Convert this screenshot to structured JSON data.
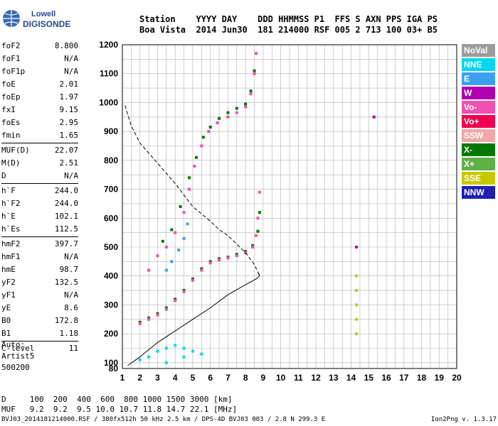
{
  "logo": {
    "line1": "Lowell",
    "line2": "DIGISONDE"
  },
  "header": {
    "line1": "Station    YYYY DAY    DDD HHMMSS P1  FFS S AXN PPS IGA PS",
    "line2": "Boa Vista  2014 Jun30  181 214000 RSF 005 2 713 100 03+ B5"
  },
  "params": [
    {
      "label": "foF2",
      "value": "8.800"
    },
    {
      "label": "foF1",
      "value": "N/A"
    },
    {
      "label": "foF1p",
      "value": "N/A"
    },
    {
      "label": "foE",
      "value": "2.01"
    },
    {
      "label": "foEp",
      "value": "1.97"
    },
    {
      "label": "fxI",
      "value": "9.15"
    },
    {
      "label": "foEs",
      "value": "2.95"
    },
    {
      "label": "fmin",
      "value": "1.65"
    },
    {
      "label": "MUF(D)",
      "value": "22.07"
    },
    {
      "label": "M(D)",
      "value": "2.51"
    },
    {
      "label": "D",
      "value": "N/A"
    },
    {
      "label": "h`F",
      "value": "244.0"
    },
    {
      "label": "h`F2",
      "value": "244.0"
    },
    {
      "label": "h`E",
      "value": "102.1"
    },
    {
      "label": "h`Es",
      "value": "112.5"
    },
    {
      "label": "hmF2",
      "value": "397.7"
    },
    {
      "label": "hmF1",
      "value": "N/A"
    },
    {
      "label": "hmE",
      "value": "98.7"
    },
    {
      "label": "yF2",
      "value": "132.5"
    },
    {
      "label": "yF1",
      "value": "N/A"
    },
    {
      "label": "yE",
      "value": "8.6"
    },
    {
      "label": "B0",
      "value": "172.8"
    },
    {
      "label": "B1",
      "value": "1.18"
    },
    {
      "label": "C-level",
      "value": "11"
    }
  ],
  "status": {
    "line1": "Auto:",
    "line2": "Artist5",
    "line3": "500200"
  },
  "legend": [
    {
      "label": "NoVal",
      "color": "#9c9c9c"
    },
    {
      "label": "NNE",
      "color": "#00d8f0"
    },
    {
      "label": "E",
      "color": "#3aa0f0"
    },
    {
      "label": "W",
      "color": "#b000b0"
    },
    {
      "label": "Vo-",
      "color": "#f050b0"
    },
    {
      "label": "Vo+",
      "color": "#f00050"
    },
    {
      "label": "SSW",
      "color": "#f0a8a8"
    },
    {
      "label": "X-",
      "color": "#007800"
    },
    {
      "label": "X+",
      "color": "#60b048"
    },
    {
      "label": "SSE",
      "color": "#c8c800"
    },
    {
      "label": "NNW",
      "color": "#2020b0"
    }
  ],
  "bottom": {
    "line1": "D     100  200  400  600  800 1000 1500 3000 [km]",
    "line2": "MUF   9.2  9.2  9.5 10.0 10.7 11.8 14.7 22.1 [MHz]"
  },
  "footer": {
    "left": "BVJ03_2014181214000.RSF / 380fx512h 50 kHz 2.5 km / DPS-4D BVJ03 003 / 2.8 N 299.3 E",
    "right": "Ion2Png v. 1.3.17"
  },
  "chart_data": {
    "type": "scatter",
    "xlim": [
      1,
      20
    ],
    "ylim": [
      80,
      1200
    ],
    "x_ticks": [
      1,
      2,
      3,
      4,
      5,
      6,
      7,
      8,
      9,
      10,
      11,
      12,
      13,
      14,
      15,
      16,
      17,
      18,
      19,
      20
    ],
    "y_ticks": [
      80,
      100,
      200,
      300,
      400,
      500,
      600,
      700,
      800,
      900,
      1000,
      1100,
      1200
    ],
    "grid": true,
    "series": [
      {
        "name": "X-",
        "color": "#007800",
        "points": [
          [
            2.0,
            240
          ],
          [
            2.5,
            255
          ],
          [
            3.0,
            270
          ],
          [
            3.5,
            290
          ],
          [
            4.0,
            320
          ],
          [
            4.5,
            350
          ],
          [
            5.0,
            390
          ],
          [
            5.5,
            425
          ],
          [
            6.0,
            450
          ],
          [
            6.5,
            460
          ],
          [
            7.0,
            465
          ],
          [
            7.5,
            475
          ],
          [
            8.0,
            485
          ],
          [
            8.4,
            505
          ],
          [
            8.7,
            555
          ],
          [
            8.8,
            620
          ],
          [
            3.3,
            520
          ],
          [
            3.8,
            560
          ],
          [
            4.3,
            640
          ],
          [
            4.8,
            740
          ],
          [
            5.2,
            810
          ],
          [
            5.6,
            880
          ],
          [
            6.0,
            915
          ],
          [
            6.5,
            945
          ],
          [
            7.0,
            965
          ],
          [
            7.5,
            980
          ],
          [
            8.0,
            995
          ],
          [
            8.3,
            1040
          ],
          [
            8.5,
            1110
          ]
        ]
      },
      {
        "name": "Vo-",
        "color": "#f050b0",
        "points": [
          [
            2.0,
            235
          ],
          [
            2.5,
            250
          ],
          [
            3.0,
            265
          ],
          [
            3.5,
            285
          ],
          [
            4.0,
            315
          ],
          [
            4.5,
            345
          ],
          [
            5.0,
            385
          ],
          [
            5.5,
            420
          ],
          [
            6.0,
            445
          ],
          [
            6.5,
            455
          ],
          [
            7.0,
            462
          ],
          [
            7.5,
            470
          ],
          [
            8.0,
            480
          ],
          [
            8.4,
            500
          ],
          [
            8.6,
            540
          ],
          [
            8.7,
            600
          ],
          [
            8.8,
            690
          ],
          [
            2.5,
            420
          ],
          [
            3.0,
            470
          ],
          [
            3.5,
            500
          ],
          [
            4.0,
            550
          ],
          [
            4.5,
            620
          ],
          [
            4.8,
            700
          ],
          [
            5.1,
            780
          ],
          [
            5.5,
            850
          ],
          [
            5.9,
            900
          ],
          [
            6.4,
            930
          ],
          [
            7.0,
            950
          ],
          [
            7.5,
            965
          ],
          [
            8.0,
            985
          ],
          [
            8.3,
            1030
          ],
          [
            8.5,
            1100
          ],
          [
            8.6,
            1170
          ]
        ]
      },
      {
        "name": "NNE",
        "color": "#00d8f0",
        "points": [
          [
            2.0,
            110
          ],
          [
            2.5,
            120
          ],
          [
            3.0,
            140
          ],
          [
            3.5,
            150
          ],
          [
            4.0,
            160
          ],
          [
            4.5,
            150
          ],
          [
            5.0,
            140
          ],
          [
            5.5,
            130
          ],
          [
            3.5,
            100
          ],
          [
            4.5,
            120
          ]
        ]
      },
      {
        "name": "E",
        "color": "#3aa0f0",
        "points": [
          [
            3.5,
            420
          ],
          [
            3.8,
            450
          ],
          [
            4.2,
            490
          ],
          [
            4.5,
            530
          ],
          [
            4.7,
            580
          ]
        ]
      },
      {
        "name": "W",
        "color": "#b000b0",
        "points": [
          [
            15.3,
            950
          ],
          [
            14.3,
            500
          ]
        ]
      },
      {
        "name": "SSE",
        "color": "#c8c800",
        "points": [
          [
            14.3,
            200
          ],
          [
            14.3,
            250
          ],
          [
            14.3,
            300
          ],
          [
            14.3,
            350
          ],
          [
            14.3,
            400
          ]
        ]
      }
    ],
    "profile": [
      [
        1.3,
        90
      ],
      [
        2.0,
        120
      ],
      [
        3.0,
        170
      ],
      [
        4.0,
        210
      ],
      [
        5.0,
        250
      ],
      [
        6.0,
        290
      ],
      [
        7.0,
        335
      ],
      [
        8.0,
        370
      ],
      [
        8.6,
        390
      ],
      [
        8.8,
        400
      ],
      [
        8.75,
        410
      ]
    ],
    "dashed_curve": [
      [
        1.15,
        990
      ],
      [
        1.5,
        920
      ],
      [
        2.0,
        860
      ],
      [
        3.0,
        790
      ],
      [
        4.0,
        720
      ],
      [
        5.0,
        640
      ],
      [
        6.0,
        590
      ],
      [
        6.5,
        560
      ],
      [
        7.0,
        540
      ],
      [
        7.5,
        510
      ],
      [
        8.0,
        480
      ],
      [
        8.5,
        440
      ],
      [
        8.8,
        400
      ]
    ]
  }
}
